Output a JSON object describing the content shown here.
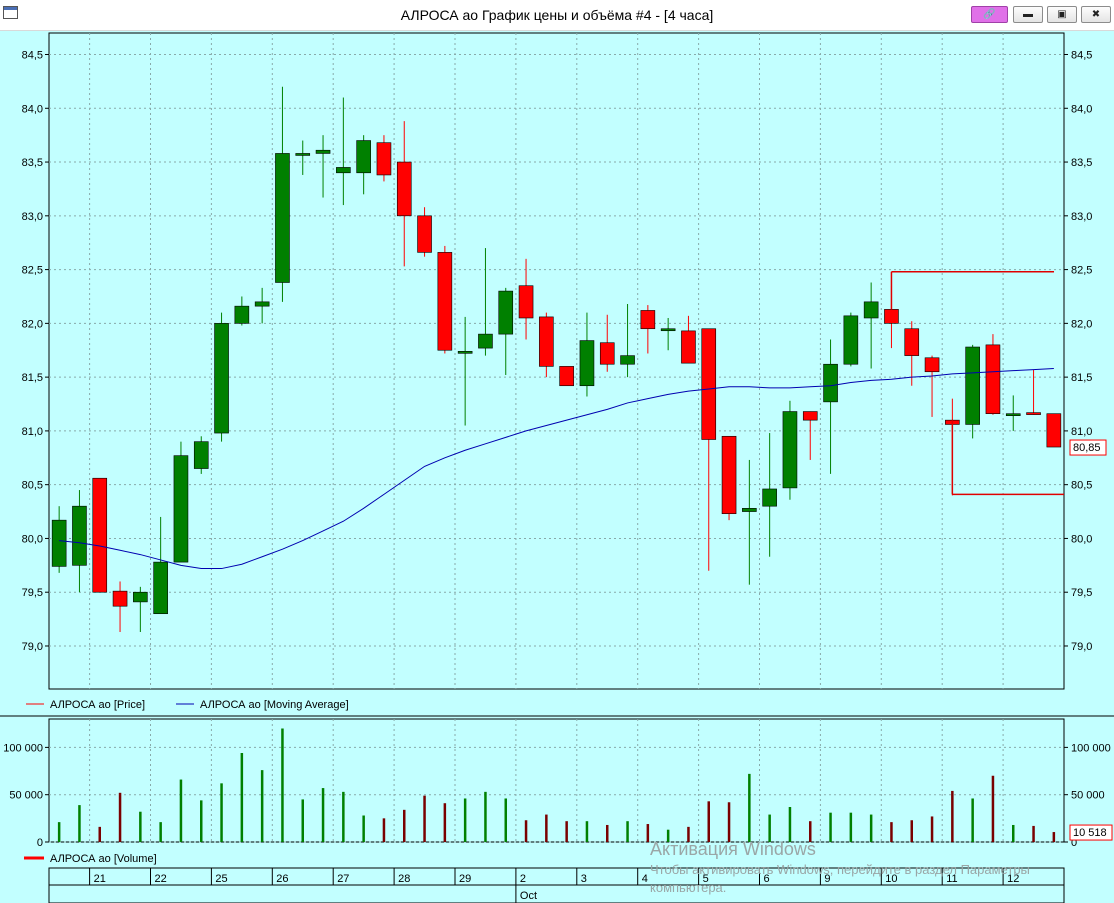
{
  "window": {
    "title": "АЛРОСА ао График цены и объёма #4 - [4 часа]",
    "buttons": [
      "pin",
      "minimize",
      "maximize",
      "close"
    ]
  },
  "colors": {
    "background": "#c2ffff",
    "bull": "#008000",
    "bear": "#ff0000",
    "moving_average": "#0000b0",
    "level": "#e00000",
    "volume_up": "#008000",
    "volume_down": "#7a0000"
  },
  "legend": {
    "price": "АЛРОСА ао [Price]",
    "ma": "АЛРОСА ао [Moving Average]",
    "volume": "АЛРОСА ао [Volume]"
  },
  "last_price_label": "80,85",
  "last_volume_label": "10 518",
  "watermark": {
    "line1": "Активация Windows",
    "line2": "Чтобы активировать Windows, перейдите в раздел Параметры",
    "line3": "компьютера."
  },
  "chart_data": [
    {
      "type": "candlestick",
      "ylim": [
        78.6,
        84.7
      ],
      "yticks": [
        "79,0",
        "79,5",
        "80,0",
        "80,5",
        "81,0",
        "81,5",
        "82,0",
        "82,5",
        "83,0",
        "83,5",
        "84,0",
        "84,5"
      ],
      "candles": [
        {
          "o": 79.74,
          "h": 80.3,
          "l": 79.68,
          "c": 80.17
        },
        {
          "o": 79.75,
          "h": 80.45,
          "l": 79.5,
          "c": 80.3
        },
        {
          "o": 80.56,
          "h": 80.56,
          "l": 79.5,
          "c": 79.5
        },
        {
          "o": 79.51,
          "h": 79.6,
          "l": 79.13,
          "c": 79.37
        },
        {
          "o": 79.41,
          "h": 79.55,
          "l": 79.13,
          "c": 79.5
        },
        {
          "o": 79.3,
          "h": 80.2,
          "l": 79.3,
          "c": 79.78
        },
        {
          "o": 79.78,
          "h": 80.9,
          "l": 79.78,
          "c": 80.77
        },
        {
          "o": 80.65,
          "h": 80.95,
          "l": 80.6,
          "c": 80.9
        },
        {
          "o": 80.98,
          "h": 82.1,
          "l": 80.9,
          "c": 82.0
        },
        {
          "o": 82.0,
          "h": 82.25,
          "l": 81.98,
          "c": 82.16
        },
        {
          "o": 82.16,
          "h": 82.33,
          "l": 82.0,
          "c": 82.2
        },
        {
          "o": 82.38,
          "h": 84.2,
          "l": 82.2,
          "c": 83.58
        },
        {
          "o": 83.58,
          "h": 83.7,
          "l": 83.38,
          "c": 83.58
        },
        {
          "o": 83.58,
          "h": 83.75,
          "l": 83.17,
          "c": 83.61
        },
        {
          "o": 83.4,
          "h": 84.1,
          "l": 83.1,
          "c": 83.45
        },
        {
          "o": 83.4,
          "h": 83.75,
          "l": 83.2,
          "c": 83.7
        },
        {
          "o": 83.68,
          "h": 83.75,
          "l": 83.32,
          "c": 83.38
        },
        {
          "o": 83.5,
          "h": 83.88,
          "l": 82.53,
          "c": 83.0
        },
        {
          "o": 83.0,
          "h": 83.08,
          "l": 82.62,
          "c": 82.66
        },
        {
          "o": 82.66,
          "h": 82.72,
          "l": 81.72,
          "c": 81.75
        },
        {
          "o": 81.74,
          "h": 82.06,
          "l": 81.05,
          "c": 81.74
        },
        {
          "o": 81.77,
          "h": 82.7,
          "l": 81.7,
          "c": 81.9
        },
        {
          "o": 81.9,
          "h": 82.33,
          "l": 81.52,
          "c": 82.3
        },
        {
          "o": 82.35,
          "h": 82.6,
          "l": 81.85,
          "c": 82.05
        },
        {
          "o": 82.06,
          "h": 82.1,
          "l": 81.5,
          "c": 81.6
        },
        {
          "o": 81.6,
          "h": 81.6,
          "l": 81.42,
          "c": 81.42
        },
        {
          "o": 81.42,
          "h": 82.1,
          "l": 81.32,
          "c": 81.84
        },
        {
          "o": 81.82,
          "h": 82.08,
          "l": 81.55,
          "c": 81.62
        },
        {
          "o": 81.62,
          "h": 82.18,
          "l": 81.5,
          "c": 81.7
        },
        {
          "o": 82.12,
          "h": 82.17,
          "l": 81.72,
          "c": 81.95
        },
        {
          "o": 81.95,
          "h": 82.05,
          "l": 81.75,
          "c": 81.95
        },
        {
          "o": 81.93,
          "h": 82.07,
          "l": 81.63,
          "c": 81.63
        },
        {
          "o": 81.95,
          "h": 81.95,
          "l": 79.7,
          "c": 80.92
        },
        {
          "o": 80.95,
          "h": 80.95,
          "l": 80.17,
          "c": 80.23
        },
        {
          "o": 80.25,
          "h": 80.73,
          "l": 79.57,
          "c": 80.28
        },
        {
          "o": 80.3,
          "h": 80.98,
          "l": 79.83,
          "c": 80.46
        },
        {
          "o": 80.47,
          "h": 81.28,
          "l": 80.36,
          "c": 81.18
        },
        {
          "o": 81.18,
          "h": 81.18,
          "l": 80.73,
          "c": 81.1
        },
        {
          "o": 81.27,
          "h": 81.85,
          "l": 80.6,
          "c": 81.62
        },
        {
          "o": 81.62,
          "h": 82.1,
          "l": 81.6,
          "c": 82.07
        },
        {
          "o": 82.05,
          "h": 82.38,
          "l": 81.58,
          "c": 82.2
        },
        {
          "o": 82.13,
          "h": 82.35,
          "l": 81.77,
          "c": 82.0
        },
        {
          "o": 81.95,
          "h": 82.02,
          "l": 81.42,
          "c": 81.7
        },
        {
          "o": 81.68,
          "h": 81.7,
          "l": 81.13,
          "c": 81.55
        },
        {
          "o": 81.1,
          "h": 81.3,
          "l": 80.4,
          "c": 81.06
        },
        {
          "o": 81.06,
          "h": 81.8,
          "l": 80.93,
          "c": 81.78
        },
        {
          "o": 81.8,
          "h": 81.9,
          "l": 81.15,
          "c": 81.16
        },
        {
          "o": 81.16,
          "h": 81.33,
          "l": 81.0,
          "c": 81.16
        },
        {
          "o": 81.17,
          "h": 81.57,
          "l": 81.15,
          "c": 81.16
        },
        {
          "o": 81.16,
          "h": 81.16,
          "l": 80.85,
          "c": 80.85
        }
      ],
      "moving_average": [
        79.98,
        79.96,
        79.93,
        79.89,
        79.85,
        79.8,
        79.75,
        79.72,
        79.72,
        79.76,
        79.83,
        79.9,
        79.98,
        80.07,
        80.16,
        80.28,
        80.41,
        80.54,
        80.67,
        80.75,
        80.82,
        80.88,
        80.94,
        81.0,
        81.05,
        81.1,
        81.15,
        81.2,
        81.26,
        81.3,
        81.34,
        81.37,
        81.39,
        81.41,
        81.41,
        81.4,
        81.4,
        81.41,
        81.42,
        81.45,
        81.47,
        81.48,
        81.5,
        81.51,
        81.53,
        81.54,
        81.55,
        81.56,
        81.57,
        81.58
      ],
      "levels": [
        {
          "price": 82.48,
          "from_index": 41
        },
        {
          "price": 80.41,
          "from_index": 44
        }
      ]
    },
    {
      "type": "bar",
      "title": "Volume",
      "ylim": [
        0,
        130000
      ],
      "yticks": [
        "0",
        "50 000",
        "100 000"
      ],
      "values": [
        21000,
        39000,
        16000,
        52000,
        32000,
        21000,
        66000,
        44000,
        62000,
        94000,
        76000,
        120000,
        45000,
        57000,
        53000,
        28000,
        25000,
        34000,
        49000,
        41000,
        46000,
        53000,
        46000,
        23000,
        29000,
        22000,
        22000,
        18000,
        22000,
        19000,
        13000,
        16000,
        43000,
        42000,
        72000,
        29000,
        37000,
        22000,
        31000,
        31000,
        29000,
        21000,
        23000,
        27000,
        54000,
        46000,
        70000,
        18000,
        17000,
        10518
      ]
    }
  ],
  "x_axis": {
    "day_labels": [
      {
        "label": "21",
        "index": 2
      },
      {
        "label": "22",
        "index": 5
      },
      {
        "label": "25",
        "index": 8
      },
      {
        "label": "26",
        "index": 11
      },
      {
        "label": "27",
        "index": 14
      },
      {
        "label": "28",
        "index": 17
      },
      {
        "label": "29",
        "index": 20
      },
      {
        "label": "2",
        "index": 23
      },
      {
        "label": "3",
        "index": 26
      },
      {
        "label": "4",
        "index": 29
      },
      {
        "label": "5",
        "index": 32
      },
      {
        "label": "6",
        "index": 35
      },
      {
        "label": "9",
        "index": 38
      },
      {
        "label": "10",
        "index": 41
      },
      {
        "label": "11",
        "index": 44
      },
      {
        "label": "12",
        "index": 47
      }
    ],
    "month_label": {
      "label": "Oct",
      "index": 23
    }
  }
}
